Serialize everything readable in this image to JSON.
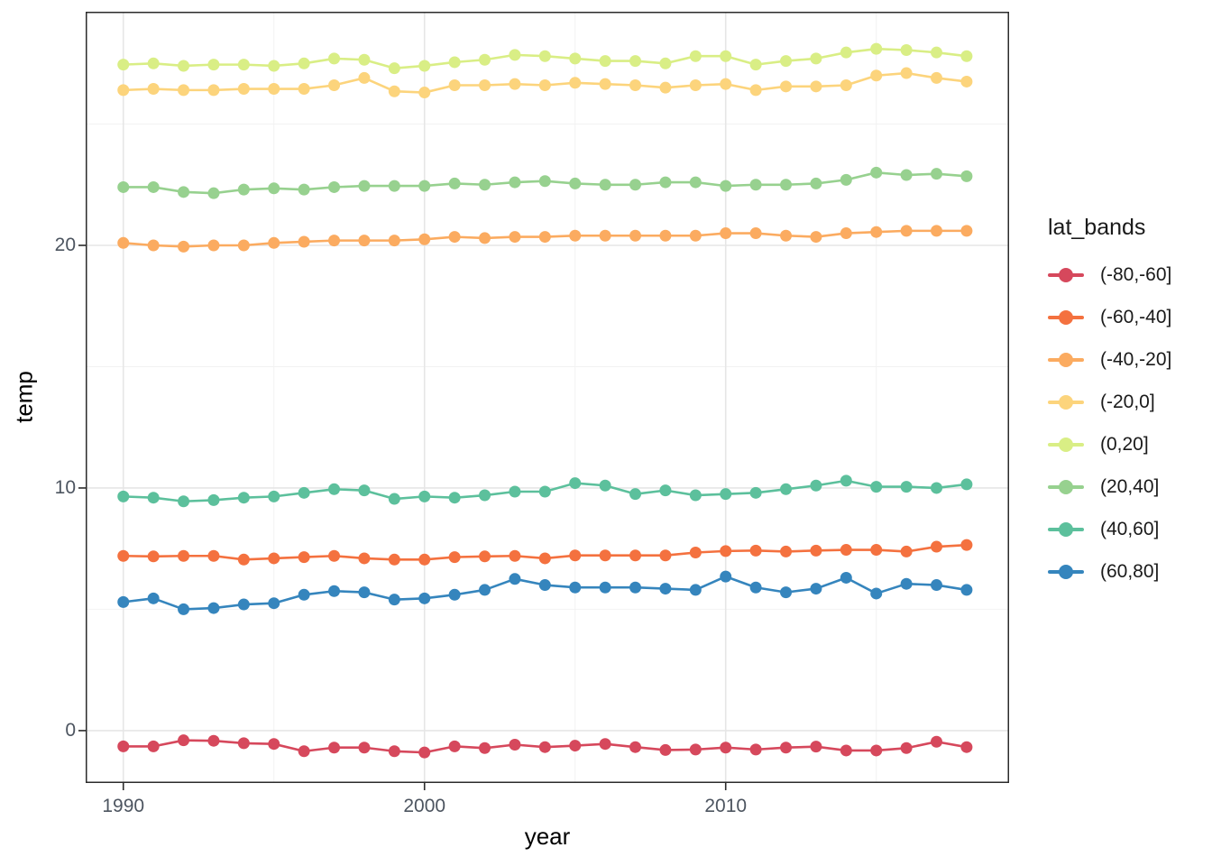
{
  "figure": {
    "xlabel": "year",
    "ylabel": "temp",
    "legend_title": "lat_bands",
    "background_color": "#ffffff",
    "panel_border_color": "#2b2b2b",
    "grid_major_color": "#e6e6e6",
    "grid_minor_color": "#f2f2f2",
    "tick_color": "#2b2b2b",
    "tick_label_color": "#4d5560"
  },
  "chart_data": {
    "type": "line",
    "title": "",
    "xlabel": "year",
    "ylabel": "temp",
    "legend_title": "lat_bands",
    "legend_position": "right",
    "grid": true,
    "x_domain": [
      1988.75,
      2019.41
    ],
    "y_domain": [
      -2.16,
      29.63
    ],
    "x_ticks_major": [
      1990,
      2000,
      2010
    ],
    "x_ticks_minor": [
      1995,
      2005,
      2015
    ],
    "y_ticks_major": [
      0,
      10,
      20
    ],
    "y_ticks_minor": [
      5,
      15,
      25
    ],
    "x": [
      1990,
      1991,
      1992,
      1993,
      1994,
      1995,
      1996,
      1997,
      1998,
      1999,
      2000,
      2001,
      2002,
      2003,
      2004,
      2005,
      2006,
      2007,
      2008,
      2009,
      2010,
      2011,
      2012,
      2013,
      2014,
      2015,
      2016,
      2017,
      2018
    ],
    "series": [
      {
        "name": "(-80,-60]",
        "color": "#d6485c",
        "values": [
          -0.65,
          -0.65,
          -0.4,
          -0.42,
          -0.52,
          -0.55,
          -0.85,
          -0.7,
          -0.7,
          -0.85,
          -0.9,
          -0.65,
          -0.72,
          -0.58,
          -0.68,
          -0.62,
          -0.55,
          -0.68,
          -0.8,
          -0.78,
          -0.7,
          -0.78,
          -0.7,
          -0.66,
          -0.82,
          -0.82,
          -0.72,
          -0.46,
          -0.68
        ]
      },
      {
        "name": "(-60,-40]",
        "color": "#f4713f",
        "values": [
          7.2,
          7.18,
          7.2,
          7.2,
          7.05,
          7.1,
          7.15,
          7.2,
          7.1,
          7.05,
          7.05,
          7.15,
          7.18,
          7.2,
          7.1,
          7.22,
          7.22,
          7.22,
          7.22,
          7.34,
          7.4,
          7.42,
          7.38,
          7.42,
          7.45,
          7.45,
          7.38,
          7.58,
          7.65
        ]
      },
      {
        "name": "(-40,-20]",
        "color": "#fbab60",
        "values": [
          20.1,
          20.0,
          19.95,
          20.0,
          20.0,
          20.1,
          20.15,
          20.2,
          20.2,
          20.2,
          20.25,
          20.35,
          20.3,
          20.35,
          20.35,
          20.4,
          20.4,
          20.4,
          20.4,
          20.4,
          20.5,
          20.5,
          20.4,
          20.35,
          20.5,
          20.55,
          20.6,
          20.6,
          20.6
        ]
      },
      {
        "name": "(-20,0]",
        "color": "#fcd47c",
        "values": [
          26.4,
          26.45,
          26.4,
          26.4,
          26.45,
          26.45,
          26.45,
          26.6,
          26.9,
          26.35,
          26.3,
          26.6,
          26.6,
          26.65,
          26.6,
          26.7,
          26.65,
          26.6,
          26.5,
          26.6,
          26.65,
          26.4,
          26.55,
          26.55,
          26.6,
          27.0,
          27.1,
          26.9,
          26.75
        ]
      },
      {
        "name": "(0,20]",
        "color": "#d9ee85",
        "values": [
          27.45,
          27.5,
          27.4,
          27.45,
          27.45,
          27.4,
          27.5,
          27.7,
          27.65,
          27.3,
          27.4,
          27.55,
          27.65,
          27.85,
          27.8,
          27.7,
          27.6,
          27.6,
          27.5,
          27.8,
          27.8,
          27.45,
          27.6,
          27.7,
          27.95,
          28.1,
          28.05,
          27.95,
          27.8
        ]
      },
      {
        "name": "(20,40]",
        "color": "#97d18f",
        "values": [
          22.4,
          22.4,
          22.2,
          22.15,
          22.3,
          22.35,
          22.3,
          22.4,
          22.45,
          22.45,
          22.45,
          22.55,
          22.5,
          22.6,
          22.65,
          22.55,
          22.5,
          22.5,
          22.6,
          22.6,
          22.45,
          22.5,
          22.5,
          22.55,
          22.7,
          23.0,
          22.9,
          22.95,
          22.85
        ]
      },
      {
        "name": "(40,60]",
        "color": "#5cc09c",
        "values": [
          9.65,
          9.6,
          9.45,
          9.5,
          9.6,
          9.65,
          9.8,
          9.95,
          9.9,
          9.55,
          9.65,
          9.6,
          9.7,
          9.85,
          9.85,
          10.2,
          10.1,
          9.75,
          9.9,
          9.7,
          9.75,
          9.8,
          9.95,
          10.1,
          10.3,
          10.05,
          10.05,
          10.0,
          10.15
        ]
      },
      {
        "name": "(60,80]",
        "color": "#3585bd",
        "values": [
          5.3,
          5.45,
          5.0,
          5.05,
          5.2,
          5.25,
          5.6,
          5.75,
          5.7,
          5.4,
          5.45,
          5.6,
          5.8,
          6.25,
          6.0,
          5.9,
          5.9,
          5.9,
          5.85,
          5.8,
          6.35,
          5.9,
          5.7,
          5.85,
          6.3,
          5.65,
          6.05,
          6.0,
          5.8
        ]
      }
    ]
  }
}
